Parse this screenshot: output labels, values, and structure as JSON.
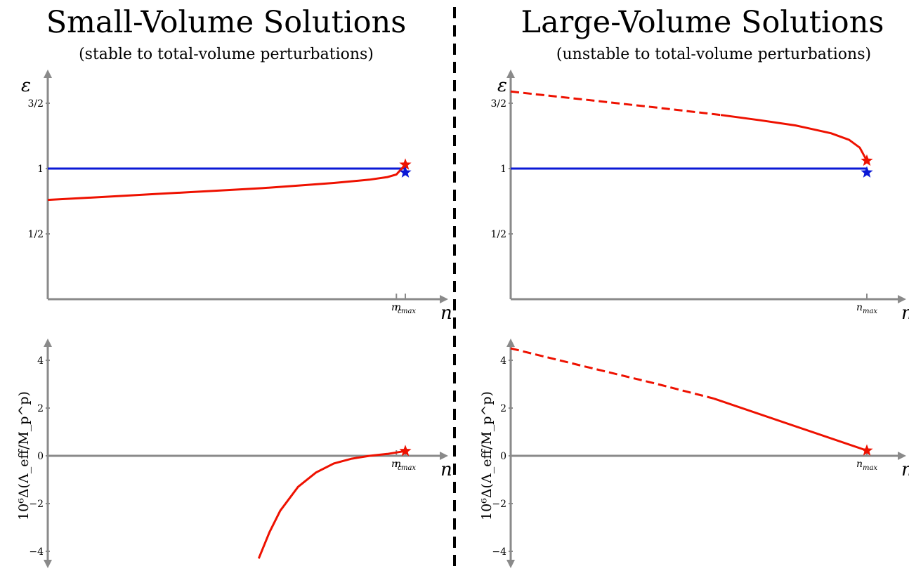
{
  "titles": {
    "left": "Small-Volume Solutions",
    "left_sub": "(stable to total-volume perturbations)",
    "right": "Large-Volume Solutions",
    "right_sub": "(unstable to total-volume perturbations)"
  },
  "colors": {
    "red": "#ee1100",
    "blue": "#0b19d6",
    "axis": "#8a8a8a",
    "divider": "#000000"
  },
  "chart_data": [
    {
      "type": "line",
      "panel": "small-volume-epsilon",
      "ylabel": "ε",
      "xlabel": "n",
      "yticks": [
        "3/2",
        "1",
        "1/2"
      ],
      "ytick_values": [
        1.5,
        1.0,
        0.5
      ],
      "xticks": [
        "n_c",
        "n_max"
      ],
      "xtick_values": [
        0.975,
        1.0
      ],
      "xlim": [
        0,
        1.1
      ],
      "ylim": [
        0,
        1.75
      ],
      "series": [
        {
          "color": "#0b19d6",
          "style": "solid",
          "x": [
            0,
            1.0
          ],
          "y": [
            1.0,
            1.0
          ]
        },
        {
          "color": "#ee1100",
          "style": "solid",
          "x": [
            0,
            0.1,
            0.2,
            0.3,
            0.4,
            0.5,
            0.6,
            0.7,
            0.8,
            0.9,
            0.95,
            0.975,
            1.0
          ],
          "y": [
            0.76,
            0.775,
            0.79,
            0.805,
            0.82,
            0.835,
            0.85,
            0.87,
            0.89,
            0.915,
            0.935,
            0.955,
            1.03
          ]
        }
      ],
      "markers": [
        {
          "shape": "star",
          "color": "#ee1100",
          "x": 1.0,
          "y": 1.03
        },
        {
          "shape": "star",
          "color": "#0b19d6",
          "x": 1.0,
          "y": 0.97
        }
      ]
    },
    {
      "type": "line",
      "panel": "large-volume-epsilon",
      "ylabel": "ε",
      "xlabel": "n",
      "yticks": [
        "3/2",
        "1",
        "1/2"
      ],
      "ytick_values": [
        1.5,
        1.0,
        0.5
      ],
      "xticks": [
        "n_max"
      ],
      "xtick_values": [
        1.0
      ],
      "xlim": [
        0,
        1.1
      ],
      "ylim": [
        0,
        1.75
      ],
      "series": [
        {
          "color": "#0b19d6",
          "style": "solid",
          "x": [
            0,
            1.0
          ],
          "y": [
            1.0,
            1.0
          ]
        },
        {
          "color": "#ee1100",
          "style": "dashed",
          "x": [
            0,
            0.2,
            0.4,
            0.59
          ],
          "y": [
            1.59,
            1.53,
            1.47,
            1.41
          ]
        },
        {
          "color": "#ee1100",
          "style": "solid",
          "x": [
            0.59,
            0.7,
            0.8,
            0.9,
            0.95,
            0.98,
            1.0
          ],
          "y": [
            1.41,
            1.37,
            1.33,
            1.27,
            1.22,
            1.16,
            1.06
          ]
        }
      ],
      "markers": [
        {
          "shape": "star",
          "color": "#ee1100",
          "x": 1.0,
          "y": 1.06
        },
        {
          "shape": "star",
          "color": "#0b19d6",
          "x": 1.0,
          "y": 0.97
        }
      ]
    },
    {
      "type": "line",
      "panel": "small-volume-lambda",
      "ylabel": "10⁶Δ(Λ_eff/M_p^p)",
      "xlabel": "n",
      "yticks": [
        "4",
        "2",
        "0",
        "−2",
        "−4"
      ],
      "ytick_values": [
        4,
        2,
        0,
        -2,
        -4
      ],
      "xticks": [
        "n_c",
        "n_max"
      ],
      "xtick_values": [
        0.975,
        1.0
      ],
      "xlim": [
        0,
        1.1
      ],
      "ylim": [
        -4.5,
        4.5
      ],
      "series": [
        {
          "color": "#ee1100",
          "style": "solid",
          "x": [
            0.59,
            0.62,
            0.65,
            0.7,
            0.75,
            0.8,
            0.85,
            0.9,
            0.95,
            1.0
          ],
          "y": [
            -4.3,
            -3.2,
            -2.3,
            -1.3,
            -0.7,
            -0.32,
            -0.12,
            0.0,
            0.08,
            0.2
          ]
        }
      ],
      "markers": [
        {
          "shape": "star",
          "color": "#ee1100",
          "x": 1.0,
          "y": 0.2
        }
      ]
    },
    {
      "type": "line",
      "panel": "large-volume-lambda",
      "ylabel": "10⁶Δ(Λ_eff/M_p^p)",
      "xlabel": "n",
      "yticks": [
        "4",
        "2",
        "0",
        "−2",
        "−4"
      ],
      "ytick_values": [
        4,
        2,
        0,
        -2,
        -4
      ],
      "xticks": [
        "n_max"
      ],
      "xtick_values": [
        1.0
      ],
      "xlim": [
        0,
        1.1
      ],
      "ylim": [
        -4.5,
        4.5
      ],
      "series": [
        {
          "color": "#ee1100",
          "style": "dashed",
          "x": [
            0,
            0.2,
            0.4,
            0.57
          ],
          "y": [
            4.5,
            3.77,
            3.05,
            2.4
          ]
        },
        {
          "color": "#ee1100",
          "style": "solid",
          "x": [
            0.57,
            1.0
          ],
          "y": [
            2.4,
            0.22
          ]
        }
      ],
      "markers": [
        {
          "shape": "star",
          "color": "#ee1100",
          "x": 1.0,
          "y": 0.22
        }
      ]
    }
  ]
}
